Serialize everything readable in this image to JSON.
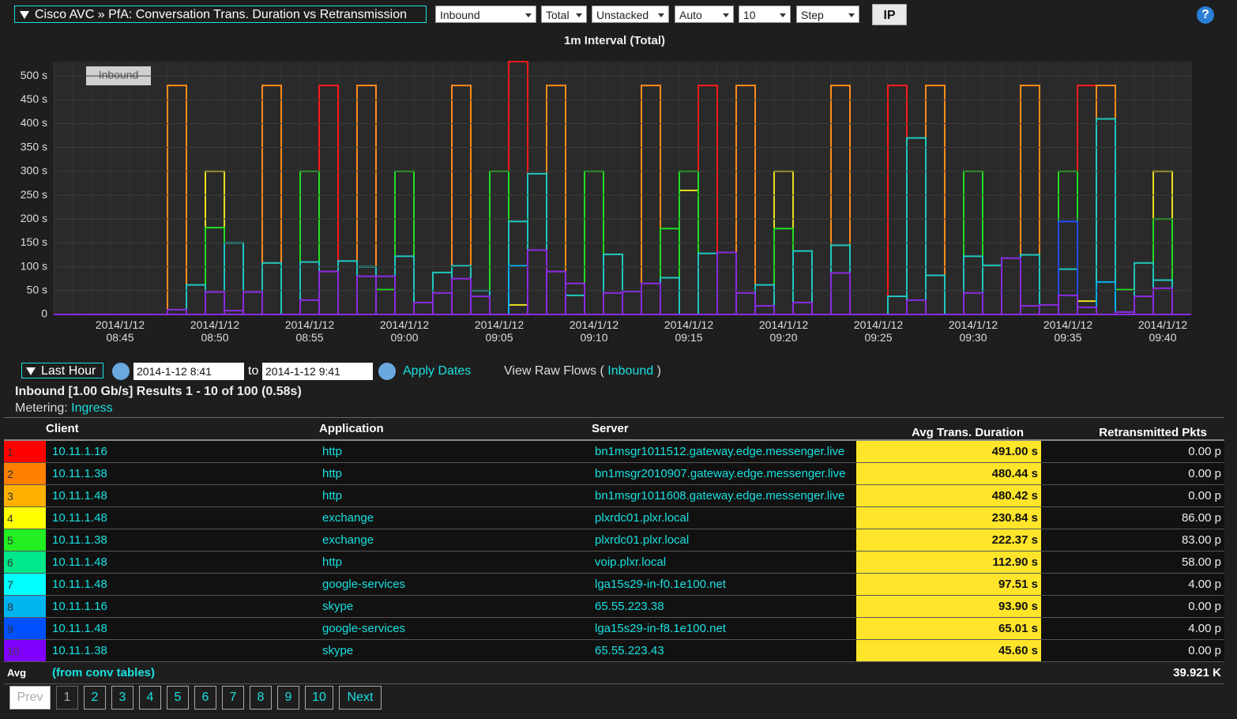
{
  "toolbar": {
    "title": "Cisco AVC » PfA: Conversation Trans. Duration vs Retransmission",
    "selects": [
      "Inbound",
      "Total",
      "Unstacked",
      "Auto",
      "10",
      "Step"
    ],
    "button": "IP",
    "help": "?"
  },
  "chart_data": {
    "type": "bar",
    "title": "1m Interval (Total)",
    "tag": "Inbound",
    "categories": [
      null,
      null,
      null,
      "2014/1/12 08:45",
      null,
      null,
      null,
      null,
      "2014/1/12 08:50",
      null,
      null,
      null,
      null,
      "2014/1/12 08:55",
      null,
      null,
      null,
      null,
      "2014/1/12 09:00",
      null,
      null,
      null,
      null,
      "2014/1/12 09:05",
      null,
      null,
      null,
      null,
      "2014/1/12 09:10",
      null,
      null,
      null,
      null,
      "2014/1/12 09:15",
      null,
      null,
      null,
      null,
      "2014/1/12 09:20",
      null,
      null,
      null,
      null,
      "2014/1/12 09:25",
      null,
      null,
      null,
      null,
      "2014/1/12 09:30",
      null,
      null,
      null,
      null,
      "2014/1/12 09:35",
      null,
      null,
      null,
      null,
      "2014/1/12 09:40",
      null
    ],
    "ylim": [
      0,
      530
    ],
    "yticks": [
      0,
      {
        "value": 50,
        "label": "50 s"
      },
      {
        "value": 100,
        "label": "100 s"
      },
      {
        "value": 150,
        "label": "150 s"
      },
      {
        "value": 200,
        "label": "200 s"
      },
      {
        "value": 250,
        "label": "250 s"
      },
      {
        "value": 300,
        "label": "300 s"
      },
      {
        "value": 350,
        "label": "350 s"
      },
      {
        "value": 400,
        "label": "400 s"
      },
      {
        "value": 450,
        "label": "450 s"
      },
      {
        "value": 500,
        "label": "500 s"
      }
    ],
    "grid": true,
    "series": [
      {
        "color": "#ff1a1a",
        "values": [
          0,
          0,
          0,
          0,
          0,
          0,
          0,
          0,
          0,
          0,
          0,
          0,
          0,
          0,
          480,
          0,
          0,
          0,
          0,
          0,
          0,
          0,
          0,
          0,
          530,
          0,
          0,
          0,
          0,
          0,
          0,
          0,
          0,
          0,
          480,
          0,
          0,
          0,
          0,
          0,
          0,
          0,
          0,
          0,
          480,
          0,
          0,
          0,
          0,
          0,
          0,
          0,
          0,
          0,
          480,
          0,
          0,
          0,
          0,
          0
        ]
      },
      {
        "color": "#ff8c1a",
        "values": [
          0,
          0,
          0,
          0,
          0,
          0,
          480,
          0,
          0,
          0,
          0,
          480,
          0,
          0,
          0,
          0,
          480,
          0,
          0,
          0,
          0,
          480,
          0,
          0,
          0,
          0,
          480,
          0,
          0,
          0,
          0,
          480,
          0,
          0,
          0,
          0,
          480,
          0,
          0,
          0,
          0,
          480,
          0,
          0,
          0,
          0,
          480,
          0,
          0,
          0,
          0,
          480,
          0,
          0,
          0,
          480,
          0,
          0,
          0,
          0
        ]
      },
      {
        "color": "#e8e020",
        "values": [
          0,
          0,
          0,
          0,
          0,
          0,
          0,
          0,
          300,
          0,
          0,
          0,
          0,
          0,
          0,
          0,
          0,
          0,
          0,
          0,
          0,
          0,
          0,
          0,
          20,
          0,
          0,
          0,
          0,
          0,
          0,
          0,
          0,
          260,
          0,
          0,
          0,
          0,
          300,
          0,
          0,
          0,
          0,
          0,
          0,
          0,
          0,
          0,
          0,
          0,
          0,
          0,
          0,
          0,
          28,
          0,
          0,
          0,
          300,
          0
        ]
      },
      {
        "color": "#22dd22",
        "values": [
          0,
          0,
          0,
          0,
          0,
          0,
          0,
          0,
          182,
          0,
          0,
          0,
          0,
          300,
          0,
          0,
          0,
          52,
          300,
          0,
          0,
          0,
          0,
          300,
          0,
          0,
          0,
          0,
          300,
          0,
          0,
          0,
          180,
          300,
          0,
          0,
          0,
          0,
          180,
          0,
          0,
          0,
          0,
          0,
          0,
          0,
          0,
          0,
          300,
          0,
          0,
          0,
          0,
          300,
          0,
          0,
          52,
          0,
          200,
          0
        ]
      },
      {
        "color": "#20c8c0",
        "values": [
          0,
          0,
          0,
          0,
          0,
          0,
          0,
          62,
          0,
          150,
          0,
          108,
          0,
          110,
          0,
          112,
          100,
          0,
          122,
          0,
          88,
          102,
          50,
          0,
          195,
          295,
          0,
          40,
          0,
          126,
          0,
          0,
          77,
          0,
          128,
          0,
          0,
          62,
          0,
          133,
          0,
          145,
          0,
          0,
          38,
          370,
          82,
          0,
          122,
          103,
          0,
          125,
          0,
          95,
          0,
          410,
          0,
          108,
          72,
          0
        ]
      },
      {
        "color": "#00b0f0",
        "values": [
          0,
          0,
          0,
          0,
          0,
          0,
          0,
          0,
          0,
          0,
          0,
          0,
          0,
          0,
          0,
          0,
          0,
          0,
          0,
          0,
          0,
          0,
          0,
          0,
          102,
          0,
          0,
          0,
          0,
          0,
          0,
          0,
          0,
          0,
          0,
          0,
          0,
          0,
          0,
          0,
          0,
          0,
          0,
          0,
          0,
          0,
          0,
          0,
          0,
          0,
          0,
          0,
          0,
          0,
          0,
          68,
          0,
          0,
          0,
          0
        ]
      },
      {
        "color": "#2050ff",
        "values": [
          0,
          0,
          0,
          0,
          0,
          0,
          0,
          0,
          0,
          0,
          0,
          0,
          0,
          0,
          0,
          0,
          0,
          0,
          0,
          0,
          0,
          0,
          0,
          0,
          0,
          0,
          0,
          0,
          0,
          0,
          0,
          0,
          0,
          0,
          0,
          0,
          0,
          0,
          0,
          0,
          0,
          0,
          0,
          0,
          0,
          0,
          0,
          0,
          0,
          0,
          0,
          0,
          0,
          195,
          0,
          0,
          0,
          0,
          0,
          0
        ]
      },
      {
        "color": "#8a2be2",
        "values": [
          0,
          0,
          0,
          0,
          0,
          0,
          10,
          0,
          47,
          8,
          47,
          0,
          0,
          30,
          90,
          0,
          80,
          80,
          0,
          25,
          45,
          75,
          38,
          0,
          0,
          135,
          90,
          65,
          0,
          45,
          48,
          65,
          0,
          0,
          0,
          130,
          45,
          18,
          0,
          25,
          0,
          87,
          0,
          0,
          0,
          30,
          0,
          0,
          45,
          0,
          118,
          18,
          20,
          40,
          15,
          0,
          5,
          38,
          55,
          0
        ]
      }
    ]
  },
  "range": {
    "preset": "Last Hour",
    "from": "2014-1-12 8:41",
    "to_label": "to",
    "to": "2014-1-12 9:41",
    "apply": "Apply Dates",
    "raw_flows": "View Raw Flows (",
    "raw_link": "Inbound",
    "raw_close": ")"
  },
  "summary": {
    "line": "Inbound [1.00 Gb/s] Results 1 - 10 of 100 (0.58s)",
    "metering_label": "Metering:",
    "metering": "Ingress"
  },
  "table": {
    "columns": [
      "Client",
      "Application",
      "Server",
      "Avg Trans. Duration",
      "Retransmitted Pkts"
    ],
    "row_colors": [
      "#ff0000",
      "#ff8000",
      "#ffb000",
      "#ffff00",
      "#22ee22",
      "#00e88a",
      "#00ffff",
      "#00b4f0",
      "#0050ff",
      "#8000ff"
    ],
    "rows": [
      [
        "1",
        "10.11.1.16",
        "http",
        "bn1msgr1011512.gateway.edge.messenger.live",
        "491.00 s",
        "0.00 p"
      ],
      [
        "2",
        "10.11.1.38",
        "http",
        "bn1msgr2010907.gateway.edge.messenger.live",
        "480.44 s",
        "0.00 p"
      ],
      [
        "3",
        "10.11.1.48",
        "http",
        "bn1msgr1011608.gateway.edge.messenger.live",
        "480.42 s",
        "0.00 p"
      ],
      [
        "4",
        "10.11.1.48",
        "exchange",
        "plxrdc01.plxr.local",
        "230.84 s",
        "86.00 p"
      ],
      [
        "5",
        "10.11.1.38",
        "exchange",
        "plxrdc01.plxr.local",
        "222.37 s",
        "83.00 p"
      ],
      [
        "6",
        "10.11.1.48",
        "http",
        "voip.plxr.local",
        "112.90 s",
        "58.00 p"
      ],
      [
        "7",
        "10.11.1.48",
        "google-services",
        "lga15s29-in-f0.1e100.net",
        "97.51 s",
        "4.00 p"
      ],
      [
        "8",
        "10.11.1.16",
        "skype",
        "65.55.223.38",
        "93.90 s",
        "0.00 p"
      ],
      [
        "9",
        "10.11.1.48",
        "google-services",
        "lga15s29-in-f8.1e100.net",
        "65.01 s",
        "4.00 p"
      ],
      [
        "10",
        "10.11.1.38",
        "skype",
        "65.55.223.43",
        "45.60 s",
        "0.00 p"
      ]
    ],
    "footer": [
      "Avg",
      "(from conv tables)",
      "39.921 K"
    ]
  },
  "pager": [
    "Prev",
    "1",
    "2",
    "3",
    "4",
    "5",
    "6",
    "7",
    "8",
    "9",
    "10",
    "Next"
  ]
}
